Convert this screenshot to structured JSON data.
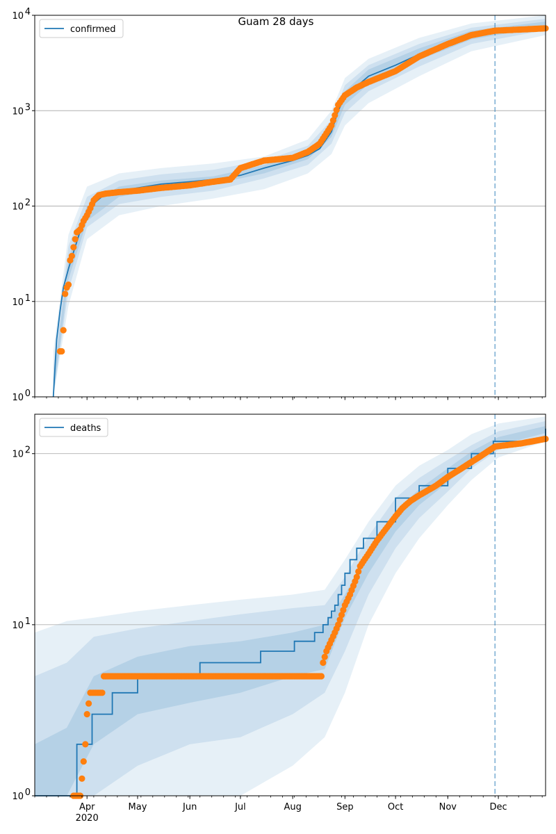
{
  "title": "Guam 28 days",
  "colors": {
    "model": "#1f77b4",
    "observed": "#ff7f0e",
    "band": "#1f77b4",
    "grid": "#b0b0b0",
    "forecast_line": "#1f77b4"
  },
  "chart_data": [
    {
      "type": "line",
      "scale": "log",
      "legend": {
        "label": "confirmed",
        "placement": "top-left"
      },
      "ylim": [
        1,
        10000
      ],
      "y_ticks": [
        {
          "value": 1,
          "label": "10^0"
        },
        {
          "value": 10,
          "label": "10^1"
        },
        {
          "value": 100,
          "label": "10^2"
        },
        {
          "value": 1000,
          "label": "10^3"
        },
        {
          "value": 10000,
          "label": "10^4"
        }
      ],
      "grid": true,
      "model_series": {
        "name": "confirmed",
        "x": [
          "2020-03-12",
          "2020-03-14",
          "2020-03-16",
          "2020-03-18",
          "2020-03-21",
          "2020-03-24",
          "2020-03-28",
          "2020-04-01",
          "2020-04-06",
          "2020-04-12",
          "2020-04-20",
          "2020-05-01",
          "2020-05-15",
          "2020-06-01",
          "2020-06-15",
          "2020-07-01",
          "2020-07-15",
          "2020-08-01",
          "2020-08-10",
          "2020-08-17",
          "2020-08-24",
          "2020-08-28",
          "2020-09-01",
          "2020-09-08",
          "2020-09-15",
          "2020-10-01",
          "2020-10-15",
          "2020-11-01",
          "2020-11-15",
          "2020-11-28"
        ],
        "y": [
          1,
          4,
          8,
          14,
          22,
          33,
          55,
          80,
          110,
          135,
          145,
          155,
          170,
          180,
          190,
          210,
          250,
          300,
          340,
          400,
          600,
          1000,
          1400,
          1800,
          2300,
          3000,
          3900,
          5000,
          6200,
          7300
        ]
      },
      "observed_series": {
        "x": [
          "2020-03-16",
          "2020-03-17",
          "2020-03-18",
          "2020-03-19",
          "2020-03-20",
          "2020-03-21",
          "2020-03-22",
          "2020-03-23",
          "2020-03-24",
          "2020-03-25",
          "2020-03-26",
          "2020-03-28",
          "2020-03-30",
          "2020-04-01",
          "2020-04-03",
          "2020-04-05",
          "2020-04-08",
          "2020-04-12",
          "2020-04-20",
          "2020-05-01",
          "2020-05-15",
          "2020-06-01",
          "2020-06-15",
          "2020-06-25",
          "2020-07-01",
          "2020-07-15",
          "2020-08-01",
          "2020-08-10",
          "2020-08-17",
          "2020-08-24",
          "2020-08-28",
          "2020-09-01",
          "2020-09-08",
          "2020-09-15",
          "2020-10-01",
          "2020-10-15",
          "2020-11-01",
          "2020-11-15",
          "2020-11-29",
          "2020-12-15",
          "2020-12-29"
        ],
        "y": [
          3,
          3,
          5,
          12,
          14,
          15,
          27,
          30,
          37,
          45,
          53,
          57,
          70,
          80,
          95,
          115,
          130,
          135,
          140,
          145,
          155,
          165,
          180,
          190,
          250,
          300,
          320,
          370,
          450,
          700,
          1150,
          1450,
          1750,
          2000,
          2600,
          3700,
          5000,
          6200,
          6900,
          7100,
          7300
        ]
      },
      "bands": [
        {
          "level": 0.95,
          "x": [
            "2020-03-12",
            "2020-03-21",
            "2020-04-01",
            "2020-04-20",
            "2020-05-15",
            "2020-06-15",
            "2020-07-15",
            "2020-08-10",
            "2020-08-24",
            "2020-09-01",
            "2020-09-15",
            "2020-10-15",
            "2020-11-15",
            "2020-12-29"
          ],
          "lower": [
            1,
            9,
            45,
            80,
            100,
            120,
            150,
            220,
            350,
            700,
            1200,
            2300,
            4200,
            6200
          ],
          "upper": [
            3,
            50,
            160,
            220,
            250,
            280,
            330,
            500,
            1000,
            2200,
            3500,
            5800,
            8200,
            10000
          ]
        },
        {
          "level": 0.8,
          "x": [
            "2020-03-12",
            "2020-03-21",
            "2020-04-01",
            "2020-04-20",
            "2020-05-15",
            "2020-06-15",
            "2020-07-15",
            "2020-08-10",
            "2020-08-24",
            "2020-09-01",
            "2020-09-15",
            "2020-10-15",
            "2020-11-15",
            "2020-12-29"
          ],
          "lower": [
            1,
            13,
            60,
            105,
            125,
            145,
            195,
            270,
            450,
            950,
            1600,
            2900,
            5000,
            7000
          ],
          "upper": [
            2,
            38,
            125,
            185,
            215,
            240,
            300,
            430,
            800,
            1850,
            3000,
            5000,
            7400,
            9200
          ]
        },
        {
          "level": 0.5,
          "x": [
            "2020-03-12",
            "2020-03-21",
            "2020-04-01",
            "2020-04-20",
            "2020-05-15",
            "2020-06-15",
            "2020-07-15",
            "2020-08-10",
            "2020-08-24",
            "2020-09-01",
            "2020-09-15",
            "2020-10-15",
            "2020-11-15",
            "2020-12-29"
          ],
          "lower": [
            1,
            17,
            70,
            125,
            150,
            170,
            220,
            310,
            530,
            1150,
            1900,
            3400,
            5600,
            7600
          ],
          "upper": [
            1.5,
            28,
            100,
            160,
            185,
            205,
            270,
            380,
            680,
            1600,
            2700,
            4500,
            6900,
            8600
          ]
        }
      ]
    },
    {
      "type": "line",
      "scale": "log",
      "legend": {
        "label": "deaths",
        "placement": "top-left"
      },
      "ylim": [
        1,
        170
      ],
      "y_ticks": [
        {
          "value": 1,
          "label": "10^0"
        },
        {
          "value": 10,
          "label": "10^1"
        },
        {
          "value": 100,
          "label": "10^2"
        }
      ],
      "grid": true,
      "model_series": {
        "name": "deaths",
        "step": true,
        "x": [
          "2020-03-01",
          "2020-03-26",
          "2020-04-04",
          "2020-04-16",
          "2020-05-01",
          "2020-06-07",
          "2020-07-13",
          "2020-08-02",
          "2020-08-14",
          "2020-08-19",
          "2020-08-22",
          "2020-08-24",
          "2020-08-26",
          "2020-08-28",
          "2020-08-30",
          "2020-09-01",
          "2020-09-04",
          "2020-09-08",
          "2020-09-12",
          "2020-09-20",
          "2020-10-01",
          "2020-10-15",
          "2020-11-01",
          "2020-11-15",
          "2020-11-28",
          "2020-12-29"
        ],
        "y": [
          1,
          2,
          3,
          4,
          5,
          6,
          7,
          8,
          9,
          10,
          11,
          12,
          13,
          15,
          17,
          20,
          24,
          28,
          32,
          40,
          55,
          65,
          82,
          100,
          118,
          140
        ]
      },
      "observed_series": {
        "x": [
          "2020-03-24",
          "2020-03-28",
          "2020-03-31",
          "2020-04-01",
          "2020-04-03",
          "2020-04-10",
          "2020-04-11",
          "2020-04-20",
          "2020-05-01",
          "2020-05-15",
          "2020-06-01",
          "2020-06-15",
          "2020-07-01",
          "2020-07-15",
          "2020-08-01",
          "2020-08-15",
          "2020-08-18",
          "2020-08-19",
          "2020-08-21",
          "2020-08-26",
          "2020-08-28",
          "2020-09-01",
          "2020-09-04",
          "2020-09-08",
          "2020-09-10",
          "2020-09-15",
          "2020-09-20",
          "2020-09-25",
          "2020-10-01",
          "2020-10-05",
          "2020-10-10",
          "2020-10-15",
          "2020-10-25",
          "2020-11-01",
          "2020-11-10",
          "2020-11-20",
          "2020-11-29",
          "2020-12-15",
          "2020-12-29"
        ],
        "y": [
          1,
          1,
          2,
          3,
          4,
          4,
          5,
          5,
          5,
          5,
          5,
          5,
          5,
          5,
          5,
          5,
          5,
          6,
          7,
          9,
          10,
          13,
          15,
          19,
          22,
          26,
          31,
          36,
          43,
          48,
          53,
          57,
          65,
          73,
          83,
          96,
          110,
          115,
          122
        ]
      },
      "bands": [
        {
          "level": 0.95,
          "x": [
            "2020-03-01",
            "2020-03-20",
            "2020-04-05",
            "2020-05-01",
            "2020-06-01",
            "2020-07-01",
            "2020-08-01",
            "2020-08-20",
            "2020-09-01",
            "2020-09-15",
            "2020-10-01",
            "2020-10-15",
            "2020-11-01",
            "2020-11-15",
            "2020-12-01",
            "2020-12-29"
          ],
          "lower": [
            1,
            1,
            1,
            1,
            1,
            1,
            1.5,
            2.2,
            4,
            10,
            20,
            32,
            50,
            70,
            95,
            118
          ],
          "upper": [
            9,
            10.5,
            11,
            12,
            13,
            14,
            15,
            16,
            24,
            40,
            65,
            85,
            105,
            130,
            150,
            165
          ]
        },
        {
          "level": 0.8,
          "x": [
            "2020-03-01",
            "2020-03-20",
            "2020-04-05",
            "2020-05-01",
            "2020-06-01",
            "2020-07-01",
            "2020-08-01",
            "2020-08-20",
            "2020-09-01",
            "2020-09-15",
            "2020-10-01",
            "2020-10-15",
            "2020-11-01",
            "2020-11-15",
            "2020-12-01",
            "2020-12-29"
          ],
          "lower": [
            1,
            1,
            1,
            1.5,
            2,
            2.2,
            3,
            4,
            7,
            15,
            28,
            42,
            60,
            82,
            105,
            125
          ],
          "upper": [
            5,
            6,
            8.5,
            9.5,
            10.5,
            11.5,
            12.5,
            13,
            19,
            33,
            55,
            72,
            92,
            112,
            135,
            155
          ]
        },
        {
          "level": 0.5,
          "x": [
            "2020-03-01",
            "2020-03-20",
            "2020-04-05",
            "2020-05-01",
            "2020-06-01",
            "2020-07-01",
            "2020-08-01",
            "2020-08-20",
            "2020-09-01",
            "2020-09-15",
            "2020-10-01",
            "2020-10-15",
            "2020-11-01",
            "2020-11-15",
            "2020-12-01",
            "2020-12-29"
          ],
          "lower": [
            1,
            1,
            2,
            3,
            3.5,
            4,
            5,
            5.5,
            11,
            20,
            35,
            50,
            68,
            90,
            112,
            132
          ],
          "upper": [
            2,
            2.5,
            5,
            6.5,
            7.5,
            8,
            9,
            10,
            15,
            27,
            46,
            62,
            82,
            103,
            125,
            145
          ]
        }
      ]
    }
  ],
  "x_axis": {
    "range": [
      "2020-03-01",
      "2020-12-29"
    ],
    "ticks": [
      {
        "date": "2020-04-01",
        "label": "Apr",
        "sub": "2020"
      },
      {
        "date": "2020-05-01",
        "label": "May"
      },
      {
        "date": "2020-06-01",
        "label": "Jun"
      },
      {
        "date": "2020-07-01",
        "label": "Jul"
      },
      {
        "date": "2020-08-01",
        "label": "Aug"
      },
      {
        "date": "2020-09-01",
        "label": "Sep"
      },
      {
        "date": "2020-10-01",
        "label": "Oct"
      },
      {
        "date": "2020-11-01",
        "label": "Nov"
      },
      {
        "date": "2020-12-01",
        "label": "Dec"
      }
    ],
    "forecast_start": "2020-11-29"
  }
}
